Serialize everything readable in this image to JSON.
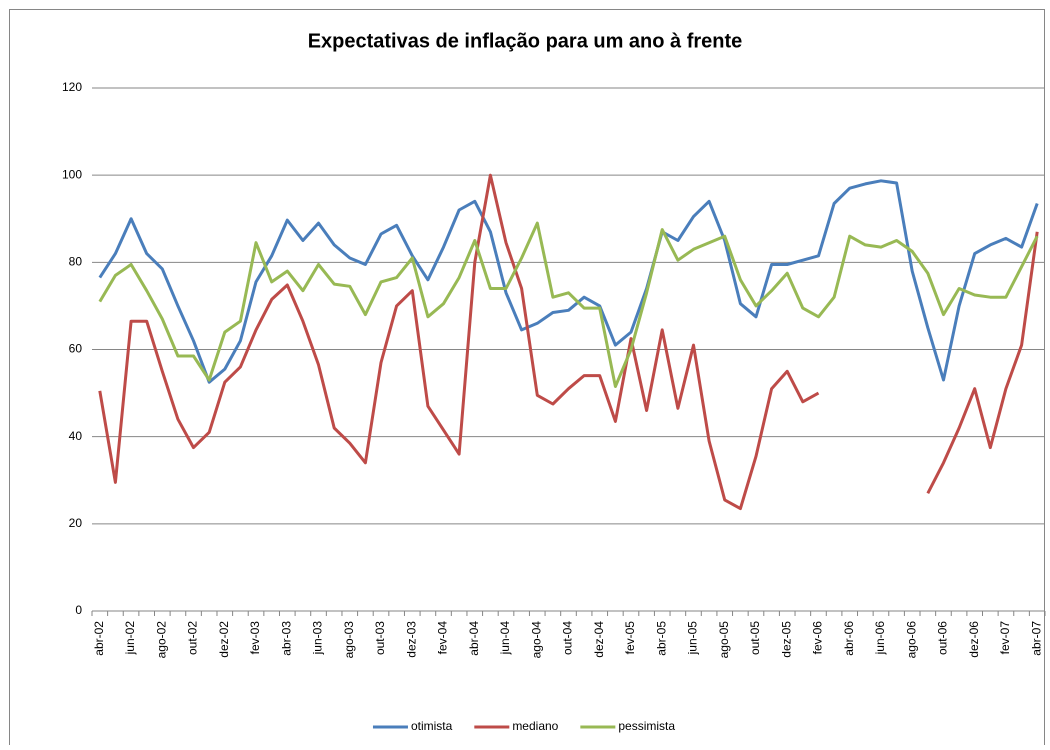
{
  "chart_data": {
    "type": "line",
    "title": "Expectativas de inflação para um ano à frente",
    "categories": [
      "abr-02",
      null,
      "jun-02",
      null,
      "ago-02",
      null,
      "out-02",
      null,
      "dez-02",
      null,
      "fev-03",
      null,
      "abr-03",
      null,
      "jun-03",
      null,
      "ago-03",
      null,
      "out-03",
      null,
      "dez-03",
      null,
      "fev-04",
      null,
      "abr-04",
      null,
      "jun-04",
      null,
      "ago-04",
      null,
      "out-04",
      null,
      "dez-04",
      null,
      "fev-05",
      null,
      "abr-05",
      null,
      "jun-05",
      null,
      "ago-05",
      null,
      "out-05",
      null,
      "dez-05",
      null,
      "fev-06",
      null,
      "abr-06",
      null,
      "jun-06",
      null,
      "ago-06",
      null,
      "out-06",
      null,
      "dez-06",
      null,
      "fev-07",
      null,
      "abr-07"
    ],
    "series": [
      {
        "name": "otimista",
        "color": "#4a7ebb",
        "values": [
          76.5,
          82,
          90,
          82,
          78.5,
          70,
          62,
          52.5,
          55.5,
          62,
          75.5,
          81.5,
          89.7,
          85,
          89,
          84,
          81,
          79.5,
          86.5,
          88.5,
          81.5,
          76,
          83.5,
          92,
          94,
          87,
          73,
          64.5,
          66,
          68.5,
          69,
          72,
          70,
          61,
          64,
          74,
          87,
          85,
          90.5,
          94,
          85,
          70.5,
          67.5,
          79.5,
          79.5,
          80.5,
          81.5,
          93.5,
          97,
          98,
          98.7,
          98.2,
          78,
          65,
          53,
          70,
          82,
          84,
          85.5,
          83.5,
          93.5
        ]
      },
      {
        "name": "mediano",
        "color": "#be4b48",
        "values": [
          50.5,
          29.5,
          66.5,
          66.5,
          55,
          44,
          37.5,
          41,
          52.5,
          56,
          64.5,
          71.5,
          74.8,
          66.5,
          56.5,
          42,
          38.5,
          34,
          57,
          70,
          73.5,
          47,
          41.5,
          36,
          80,
          100,
          84.5,
          74,
          49.5,
          47.5,
          51,
          54,
          54,
          43.5,
          62.5,
          46,
          64.5,
          46.5,
          61,
          39,
          25.5,
          23.5,
          35.5,
          51,
          55,
          48,
          50,
          null,
          null,
          null,
          null,
          null,
          null,
          27,
          34,
          42,
          51,
          37.5,
          51,
          61,
          87
        ]
      },
      {
        "name": "pessimista",
        "color": "#98b954",
        "values": [
          71,
          77,
          79.5,
          73.5,
          67,
          58.5,
          58.5,
          53,
          64,
          66.5,
          84.5,
          75.5,
          78,
          73.5,
          79.5,
          75,
          74.5,
          68,
          75.5,
          76.5,
          81,
          67.5,
          70.5,
          76.5,
          85,
          74,
          74,
          81,
          89,
          72,
          73,
          69.5,
          69.5,
          51.5,
          60,
          73,
          87.5,
          80.5,
          83,
          84.5,
          86,
          76,
          70,
          73.5,
          77.5,
          69.5,
          67.5,
          72,
          86,
          84,
          83.5,
          85,
          82.5,
          77.5,
          68,
          74,
          72.5,
          72,
          72,
          79,
          86
        ]
      }
    ],
    "ylim": [
      0,
      120
    ],
    "yticks": [
      0,
      20,
      40,
      60,
      80,
      100,
      120
    ],
    "grid": true,
    "legend": "bottom"
  }
}
